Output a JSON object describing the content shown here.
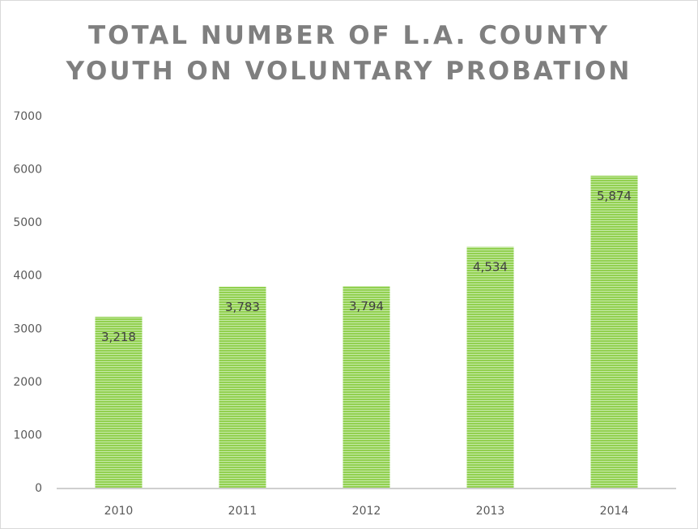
{
  "chart_data": {
    "type": "bar",
    "title_lines": [
      "TOTAL NUMBER OF L.A. COUNTY",
      "YOUTH ON VOLUNTARY PROBATION"
    ],
    "categories": [
      "2010",
      "2011",
      "2012",
      "2013",
      "2014"
    ],
    "values": [
      3218,
      3783,
      3794,
      4534,
      5874
    ],
    "data_labels": [
      "3,218",
      "3,783",
      "3,794",
      "4,534",
      "5,874"
    ],
    "ylim": [
      0,
      7000
    ],
    "yticks": [
      0,
      1000,
      2000,
      3000,
      4000,
      5000,
      6000,
      7000
    ],
    "xlabel": "",
    "ylabel": "",
    "grid": false,
    "bar_color": "#92d050",
    "bar_stripe_color": "#c6eaa8"
  }
}
